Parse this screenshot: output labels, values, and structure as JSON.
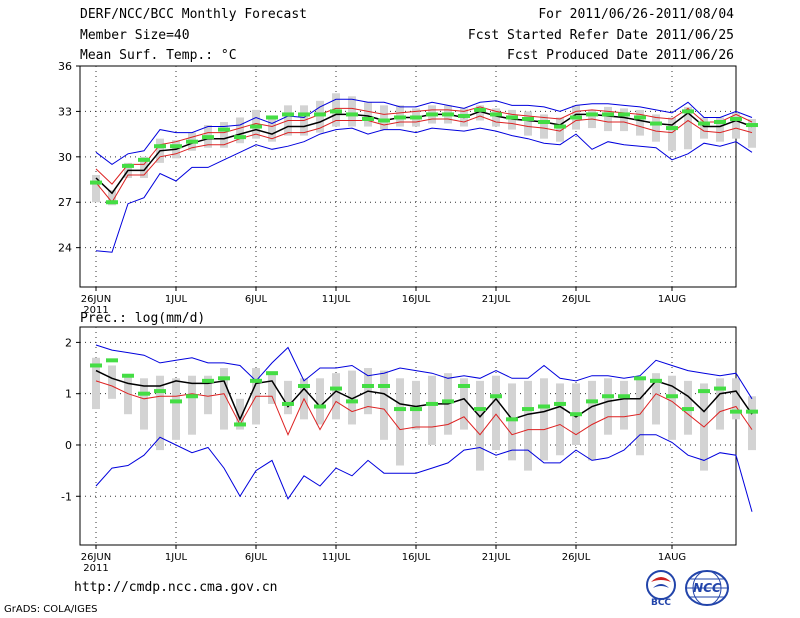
{
  "header": {
    "title": "DERF/NCC/BCC Monthly Forecast",
    "member": "Member Size=40",
    "variable": "Mean Surf. Temp.: °C",
    "period": "For 2011/06/26-2011/08/04",
    "started": "Fcst Started Refer Date 2011/06/25",
    "produced": "Fcst Produced Date 2011/06/26"
  },
  "footer": {
    "url": "http://cmdp.ncc.cma.gov.cn",
    "grads": "GrADS: COLA/IGES",
    "logo_left": "BCC",
    "logo_right": "NCC"
  },
  "colors": {
    "box": "#d3d3d3",
    "median": "#44dd44",
    "mean": "#000000",
    "inner": "#dd2222",
    "envelope": "#0000dd",
    "grid": "#333333"
  },
  "chart_data": [
    {
      "type": "line",
      "title": "Mean Surf. Temp.: °C",
      "x_start_day": 0,
      "x_ticks": [
        {
          "day": 0,
          "label": "26JUN",
          "sublabel": "2011"
        },
        {
          "day": 5,
          "label": "1JUL"
        },
        {
          "day": 10,
          "label": "6JUL"
        },
        {
          "day": 15,
          "label": "11JUL"
        },
        {
          "day": 20,
          "label": "16JUL"
        },
        {
          "day": 25,
          "label": "21JUL"
        },
        {
          "day": 30,
          "label": "26JUL"
        },
        {
          "day": 36,
          "label": "1AUG"
        }
      ],
      "xlim": [
        -1,
        40
      ],
      "ylim": [
        21.4,
        36
      ],
      "y_ticks": [
        24,
        27,
        30,
        33,
        36
      ],
      "series": [
        {
          "name": "max",
          "values": [
            30.3,
            29.5,
            30.2,
            30.4,
            31.8,
            31.6,
            31.6,
            32.0,
            32.0,
            32.1,
            32.6,
            32.2,
            32.7,
            32.6,
            33.3,
            33.8,
            33.8,
            33.6,
            33.6,
            33.3,
            33.3,
            33.6,
            33.4,
            33.2,
            33.6,
            33.7,
            33.4,
            33.4,
            33.3,
            33.0,
            33.4,
            33.5,
            33.5,
            33.4,
            33.3,
            33.1,
            32.9,
            33.6,
            32.6,
            32.6,
            33.0,
            32.6
          ]
        },
        {
          "name": "q75",
          "values": [
            29.2,
            28.2,
            29.5,
            29.5,
            30.8,
            31.0,
            31.3,
            31.6,
            31.6,
            31.9,
            32.2,
            32.0,
            32.4,
            32.4,
            32.8,
            33.2,
            33.2,
            33.0,
            32.8,
            32.9,
            33.0,
            33.1,
            33.1,
            33.0,
            33.3,
            33.0,
            32.8,
            32.7,
            32.6,
            32.5,
            33.0,
            33.1,
            33.0,
            32.9,
            32.8,
            32.6,
            32.5,
            33.2,
            32.3,
            32.3,
            32.8,
            32.3
          ]
        },
        {
          "name": "mean",
          "values": [
            28.6,
            27.6,
            29.1,
            29.1,
            30.4,
            30.5,
            30.9,
            31.2,
            31.2,
            31.5,
            31.8,
            31.5,
            32.0,
            32.0,
            32.3,
            32.8,
            32.8,
            32.7,
            32.4,
            32.6,
            32.6,
            32.8,
            32.8,
            32.6,
            33.0,
            32.7,
            32.5,
            32.4,
            32.3,
            32.1,
            32.8,
            32.8,
            32.7,
            32.6,
            32.4,
            32.2,
            32.1,
            32.9,
            32.0,
            32.0,
            32.4,
            32.0
          ]
        },
        {
          "name": "q25",
          "values": [
            28.3,
            27.0,
            28.8,
            28.8,
            30.0,
            30.2,
            30.6,
            30.8,
            30.8,
            31.2,
            31.5,
            31.2,
            31.6,
            31.6,
            31.9,
            32.4,
            32.4,
            32.4,
            32.1,
            32.3,
            32.3,
            32.5,
            32.5,
            32.3,
            32.7,
            32.3,
            32.2,
            32.0,
            31.9,
            31.7,
            32.4,
            32.5,
            32.3,
            32.3,
            32.0,
            31.7,
            31.6,
            32.4,
            31.7,
            31.6,
            31.9,
            31.6
          ]
        },
        {
          "name": "min",
          "values": [
            23.8,
            23.7,
            26.9,
            27.3,
            28.9,
            28.4,
            29.3,
            29.3,
            29.8,
            30.3,
            30.8,
            30.5,
            30.7,
            31.0,
            31.5,
            31.8,
            31.9,
            31.5,
            31.8,
            31.8,
            31.6,
            31.9,
            31.8,
            31.7,
            31.9,
            31.7,
            31.4,
            31.2,
            30.9,
            30.8,
            31.5,
            30.5,
            31.0,
            30.8,
            30.7,
            30.6,
            29.8,
            30.2,
            30.9,
            30.7,
            31.0,
            30.3
          ]
        },
        {
          "name": "box_low",
          "values": [
            27.0,
            26.8,
            28.6,
            28.6,
            29.6,
            29.9,
            30.4,
            30.6,
            30.6,
            30.9,
            31.2,
            31.0,
            31.4,
            31.4,
            31.6,
            32.0,
            32.0,
            32.0,
            31.8,
            32.0,
            32.0,
            32.2,
            32.2,
            32.0,
            32.4,
            32.0,
            31.8,
            31.4,
            31.2,
            31.0,
            31.8,
            31.9,
            31.7,
            31.7,
            31.4,
            31.0,
            30.4,
            30.5,
            31.2,
            31.0,
            31.2,
            30.6
          ]
        },
        {
          "name": "box_high",
          "values": [
            28.8,
            27.8,
            29.6,
            30.0,
            31.2,
            31.1,
            31.6,
            32.1,
            32.3,
            32.6,
            33.1,
            32.6,
            33.4,
            33.4,
            33.7,
            34.2,
            34.0,
            33.6,
            33.4,
            33.4,
            33.2,
            33.4,
            33.4,
            33.2,
            33.4,
            33.2,
            33.1,
            33.0,
            32.8,
            32.6,
            33.4,
            33.1,
            33.3,
            33.2,
            33.1,
            32.8,
            32.6,
            33.3,
            32.6,
            32.6,
            32.9,
            32.5
          ]
        },
        {
          "name": "median",
          "values": [
            28.3,
            27.0,
            29.4,
            29.8,
            30.7,
            30.7,
            31.0,
            31.3,
            31.8,
            31.3,
            32.0,
            32.6,
            32.8,
            32.8,
            32.8,
            33.0,
            32.8,
            32.5,
            32.4,
            32.6,
            32.6,
            32.8,
            32.8,
            32.7,
            33.1,
            32.8,
            32.6,
            32.5,
            32.3,
            32.0,
            32.6,
            32.8,
            32.8,
            32.8,
            32.6,
            32.2,
            31.9,
            33.0,
            32.2,
            32.3,
            32.5,
            32.1
          ]
        }
      ]
    },
    {
      "type": "line",
      "title": "Prec.: log(mm/d)",
      "x_start_day": 0,
      "x_ticks": [
        {
          "day": 0,
          "label": "26JUN",
          "sublabel": "2011"
        },
        {
          "day": 5,
          "label": "1JUL"
        },
        {
          "day": 10,
          "label": "6JUL"
        },
        {
          "day": 15,
          "label": "11JUL"
        },
        {
          "day": 20,
          "label": "16JUL"
        },
        {
          "day": 25,
          "label": "21JUL"
        },
        {
          "day": 30,
          "label": "26JUL"
        },
        {
          "day": 36,
          "label": "1AUG"
        }
      ],
      "xlim": [
        -1,
        40
      ],
      "ylim": [
        -1.95,
        2.3
      ],
      "y_ticks": [
        -1,
        0,
        1,
        2
      ],
      "series": [
        {
          "name": "max",
          "values": [
            1.95,
            1.85,
            1.8,
            1.75,
            1.6,
            1.65,
            1.7,
            1.6,
            1.6,
            1.55,
            1.25,
            1.6,
            1.9,
            1.25,
            1.5,
            1.5,
            1.55,
            1.35,
            1.4,
            1.5,
            1.45,
            1.4,
            1.3,
            1.35,
            1.3,
            1.45,
            1.3,
            1.3,
            1.55,
            1.3,
            1.25,
            1.35,
            1.35,
            1.3,
            1.35,
            1.65,
            1.55,
            1.45,
            1.4,
            1.35,
            1.4,
            0.9
          ]
        },
        {
          "name": "mean",
          "values": [
            1.45,
            1.3,
            1.2,
            1.15,
            1.15,
            1.25,
            1.2,
            1.2,
            1.25,
            0.5,
            1.2,
            1.25,
            0.75,
            1.1,
            0.75,
            1.05,
            0.9,
            1.05,
            1.0,
            0.8,
            0.75,
            0.8,
            0.8,
            0.9,
            0.55,
            0.9,
            0.5,
            0.6,
            0.65,
            0.75,
            0.55,
            0.75,
            0.85,
            0.9,
            0.9,
            1.25,
            1.15,
            0.95,
            0.65,
            1.0,
            1.05,
            0.6
          ]
        },
        {
          "name": "inner",
          "values": [
            1.25,
            1.15,
            1.0,
            0.9,
            0.95,
            0.95,
            1.0,
            0.95,
            1.0,
            0.4,
            0.95,
            0.95,
            0.2,
            0.9,
            0.3,
            0.85,
            0.65,
            0.75,
            0.7,
            0.3,
            0.35,
            0.35,
            0.4,
            0.55,
            0.2,
            0.6,
            0.2,
            0.3,
            0.3,
            0.4,
            0.2,
            0.4,
            0.55,
            0.55,
            0.6,
            1.0,
            0.85,
            0.6,
            0.35,
            0.65,
            0.75,
            0.3
          ]
        },
        {
          "name": "min",
          "values": [
            -0.8,
            -0.45,
            -0.4,
            -0.2,
            0.15,
            0.0,
            -0.15,
            -0.05,
            -0.45,
            -1.0,
            -0.5,
            -0.3,
            -1.05,
            -0.6,
            -0.8,
            -0.45,
            -0.6,
            -0.3,
            -0.55,
            -0.55,
            -0.55,
            -0.45,
            -0.35,
            -0.1,
            -0.05,
            -0.2,
            -0.1,
            -0.1,
            -0.35,
            -0.35,
            -0.1,
            -0.3,
            -0.25,
            -0.1,
            0.2,
            0.2,
            0.05,
            -0.2,
            -0.3,
            -0.15,
            -0.2,
            -1.3
          ]
        },
        {
          "name": "box_low",
          "values": [
            0.7,
            0.9,
            0.6,
            0.3,
            -0.1,
            0.1,
            0.2,
            0.6,
            0.3,
            0.3,
            0.4,
            0.8,
            0.6,
            0.5,
            0.4,
            0.5,
            0.4,
            0.6,
            0.1,
            -0.4,
            0.3,
            0.0,
            0.2,
            0.3,
            -0.5,
            -0.1,
            -0.3,
            -0.5,
            -0.3,
            -0.2,
            0.0,
            -0.3,
            0.2,
            0.3,
            -0.2,
            0.4,
            0.1,
            0.2,
            -0.5,
            0.3,
            0.5,
            -0.1
          ]
        },
        {
          "name": "box_high",
          "values": [
            1.7,
            1.55,
            1.35,
            1.3,
            1.35,
            1.3,
            1.35,
            1.35,
            1.5,
            0.9,
            1.5,
            1.4,
            1.25,
            1.3,
            1.3,
            1.4,
            1.45,
            1.5,
            1.45,
            1.3,
            1.25,
            1.35,
            1.4,
            1.3,
            1.25,
            1.35,
            1.2,
            1.25,
            1.3,
            1.2,
            1.2,
            1.25,
            1.3,
            1.25,
            1.3,
            1.4,
            1.35,
            1.25,
            1.2,
            1.3,
            1.3,
            0.95
          ]
        },
        {
          "name": "median",
          "values": [
            1.55,
            1.65,
            1.35,
            1.0,
            1.05,
            0.85,
            0.95,
            1.25,
            1.3,
            0.4,
            1.25,
            1.4,
            0.8,
            1.15,
            0.75,
            1.1,
            0.85,
            1.15,
            1.15,
            0.7,
            0.7,
            0.8,
            0.85,
            1.15,
            0.7,
            0.95,
            0.5,
            0.7,
            0.75,
            0.8,
            0.6,
            0.85,
            0.95,
            0.95,
            1.3,
            1.25,
            0.95,
            0.7,
            1.05,
            1.1,
            0.65,
            0.65
          ]
        }
      ]
    }
  ]
}
